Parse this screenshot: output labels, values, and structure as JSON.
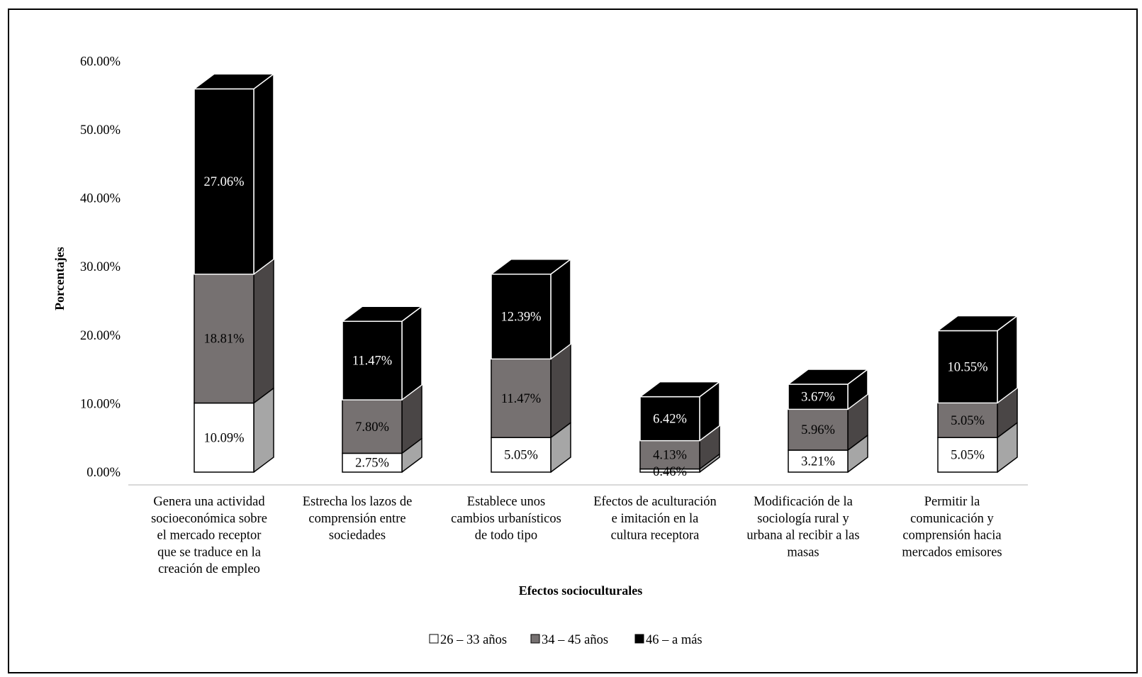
{
  "chart_data": {
    "type": "bar",
    "stacked": true,
    "three_d": true,
    "title": "",
    "xlabel": "Efectos socioculturales",
    "ylabel": "Porcentajes",
    "ylim": [
      0,
      60
    ],
    "yticks": [
      0,
      10,
      20,
      30,
      40,
      50,
      60
    ],
    "ytick_labels": [
      "0.00%",
      "10.00%",
      "20.00%",
      "30.00%",
      "40.00%",
      "50.00%",
      "60.00%"
    ],
    "grid": false,
    "legend_position": "bottom",
    "categories": [
      [
        "Genera una actividad",
        "socioeconómica sobre",
        "el mercado receptor",
        "que se traduce en la",
        "creación de empleo"
      ],
      [
        "Estrecha los lazos de",
        "comprensión entre",
        "sociedades"
      ],
      [
        "Establece unos",
        "cambios urbanísticos",
        "de todo tipo"
      ],
      [
        "Efectos de aculturación",
        "e imitación en la",
        "cultura receptora"
      ],
      [
        "Modificación de la",
        "sociología rural y",
        "urbana al recibir a las",
        "masas"
      ],
      [
        "Permitir la",
        "comunicación y",
        "comprensión hacia",
        "mercados emisores"
      ]
    ],
    "series": [
      {
        "name": "26 – 33 años",
        "values": [
          10.09,
          2.75,
          5.05,
          0.46,
          3.21,
          5.05
        ],
        "labels": [
          "10.09%",
          "2.75%",
          "5.05%",
          "0.46%",
          "3.21%",
          "5.05%"
        ],
        "front_color": "#ffffff",
        "side_color": "#a6a6a6",
        "top_color": "#d9d9d9",
        "label_color": "#000000"
      },
      {
        "name": "34 – 45 años",
        "values": [
          18.81,
          7.8,
          11.47,
          4.13,
          5.96,
          5.05
        ],
        "labels": [
          "18.81%",
          "7.80%",
          "11.47%",
          "4.13%",
          "5.96%",
          "5.05%"
        ],
        "front_color": "#767171",
        "side_color": "#4a4646",
        "top_color": "#8c8888",
        "label_color": "#000000"
      },
      {
        "name": "46 – a más",
        "values": [
          27.06,
          11.47,
          12.39,
          6.42,
          3.67,
          10.55
        ],
        "labels": [
          "27.06%",
          "11.47%",
          "12.39%",
          "6.42%",
          "3.67%",
          "10.55%"
        ],
        "front_color": "#000000",
        "side_color": "#000000",
        "top_color": "#000000",
        "label_color": "#ffffff"
      }
    ]
  }
}
